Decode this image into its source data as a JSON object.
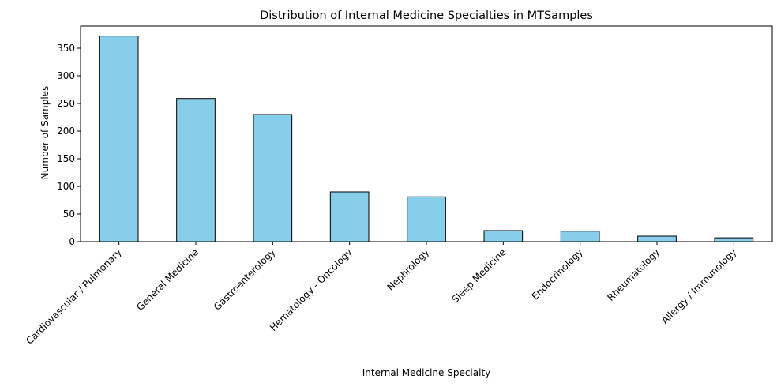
{
  "chart_data": {
    "type": "bar",
    "title": "Distribution of Internal Medicine Specialties in MTSamples",
    "xlabel": "Internal Medicine Specialty",
    "ylabel": "Number of Samples",
    "categories": [
      "Cardiovascular / Pulmonary",
      "General Medicine",
      "Gastroenterology",
      "Hematology - Oncology",
      "Nephrology",
      "Sleep Medicine",
      "Endocrinology",
      "Rheumatology",
      "Allergy / Immunology"
    ],
    "values": [
      372,
      259,
      230,
      90,
      81,
      20,
      19,
      10,
      7
    ],
    "ylim": [
      0,
      390
    ],
    "yticks": [
      0,
      50,
      100,
      150,
      200,
      250,
      300,
      350
    ],
    "grid": false,
    "bar_color": "#87ceeb",
    "edge_color": "#000000"
  }
}
